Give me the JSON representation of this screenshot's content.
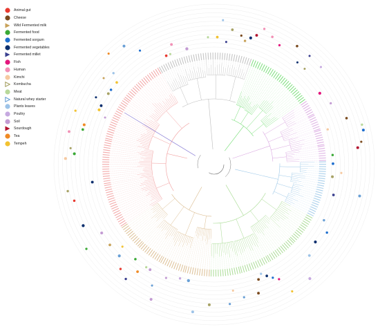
{
  "legend": {
    "items": [
      {
        "label": "Animal gut",
        "color": "#e8392f",
        "shape": "circle",
        "icon": "red-circle-icon"
      },
      {
        "label": "Cheese",
        "color": "#7a4a1e",
        "shape": "circle",
        "icon": "brown-circle-icon"
      },
      {
        "label": "Wild Fermented milk",
        "color": "#c8a25a",
        "shape": "triangle",
        "icon": "tan-triangle-icon"
      },
      {
        "label": "Fermented food",
        "color": "#39a935",
        "shape": "circle",
        "icon": "green-circle-icon"
      },
      {
        "label": "Fermented sorgum",
        "color": "#1f6fcf",
        "shape": "circle",
        "icon": "blue-circle-icon"
      },
      {
        "label": "Fermented vegetables",
        "color": "#0b2f6e",
        "shape": "circle",
        "icon": "navy-circle-icon"
      },
      {
        "label": "Fermented millet",
        "color": "#3a3f8f",
        "shape": "triangle",
        "icon": "indigo-triangle-icon"
      },
      {
        "label": "Fish",
        "color": "#e3177d",
        "shape": "circle",
        "icon": "magenta-circle-icon"
      },
      {
        "label": "Human",
        "color": "#f291b6",
        "shape": "circle",
        "icon": "pink-circle-icon"
      },
      {
        "label": "Kimchi",
        "color": "#f6c9a0",
        "shape": "circle",
        "icon": "peach-circle-icon"
      },
      {
        "label": "Kombucha",
        "color": "#a7a265",
        "shape": "triangle-outline",
        "icon": "olive-triangle-icon"
      },
      {
        "label": "Meat",
        "color": "#b8d89a",
        "shape": "circle",
        "icon": "lightgreen-circle-icon"
      },
      {
        "label": "Natural whey starter",
        "color": "#6aa0d6",
        "shape": "triangle-outline",
        "icon": "lightblue-triangle-icon"
      },
      {
        "label": "Plants leaves",
        "color": "#9dc3e8",
        "shape": "circle",
        "icon": "skyblue-circle-icon"
      },
      {
        "label": "Poultry",
        "color": "#c6a9e0",
        "shape": "circle",
        "icon": "lavender-circle-icon"
      },
      {
        "label": "Soil",
        "color": "#c39bd3",
        "shape": "circle",
        "icon": "violet-circle-icon"
      },
      {
        "label": "Sourdough",
        "color": "#b3122e",
        "shape": "triangle",
        "icon": "crimson-triangle-icon"
      },
      {
        "label": "Tea",
        "color": "#f08a24",
        "shape": "circle",
        "icon": "orange-circle-icon"
      },
      {
        "label": "Tempeh",
        "color": "#f2c230",
        "shape": "circle",
        "icon": "gold-circle-icon"
      }
    ]
  },
  "tree": {
    "clade_colors": [
      "#f19a9a",
      "#d9b98a",
      "#a3d98c",
      "#9cc8e8",
      "#d9a6e0",
      "#6fdc6f",
      "#bbbbbb",
      "#8b7fd6"
    ]
  }
}
